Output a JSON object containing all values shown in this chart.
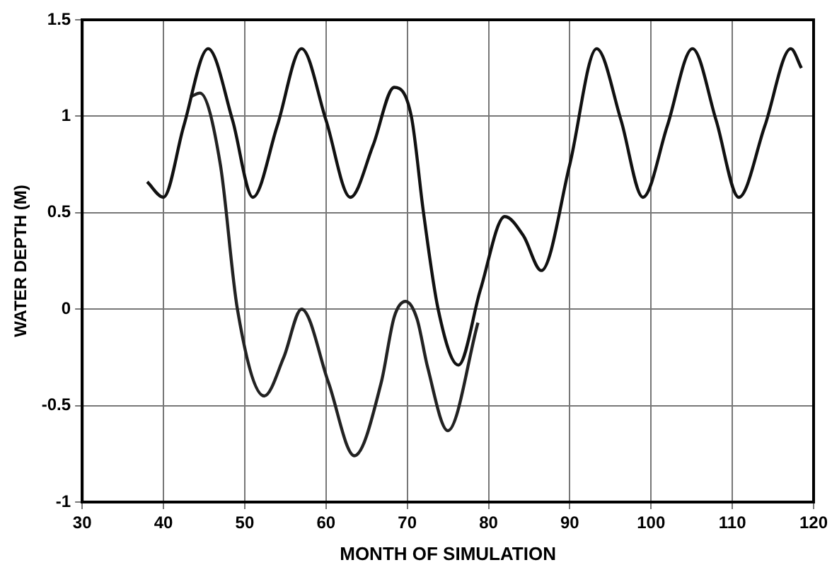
{
  "chart_data": {
    "type": "line",
    "xlabel": "MONTH OF SIMULATION",
    "ylabel": "WATER DEPTH (M)",
    "xlim": [
      30,
      120
    ],
    "xticks": [
      30,
      40,
      50,
      60,
      70,
      80,
      90,
      100,
      110,
      120
    ],
    "ylim": [
      -1,
      1.5
    ],
    "yticks": [
      -1,
      -0.5,
      0,
      0.5,
      1,
      1.5
    ],
    "grid": true,
    "line_style": "solid",
    "marker": "none",
    "series": [
      {
        "color": "#111111",
        "x": [
          38,
          40,
          42.5,
          45.5,
          48.5,
          51,
          54,
          57,
          60,
          63,
          65.8,
          68.4,
          70.5,
          72,
          73.8,
          76.3,
          79,
          82,
          84.3,
          86.5,
          90,
          93.3,
          96.3,
          99,
          102,
          105.1,
          108,
          110.8,
          114,
          117.2,
          118.5
        ],
        "values": [
          0.66,
          0.58,
          0.95,
          1.35,
          0.98,
          0.58,
          0.95,
          1.35,
          0.98,
          0.58,
          0.85,
          1.15,
          1.0,
          0.5,
          0.0,
          -0.29,
          0.1,
          0.48,
          0.38,
          0.2,
          0.75,
          1.35,
          0.98,
          0.58,
          0.95,
          1.35,
          0.98,
          0.58,
          0.95,
          1.35,
          1.25
        ]
      },
      {
        "color": "#222222",
        "x": [
          43.3,
          44.5,
          47,
          49.1,
          52.4,
          54.8,
          57,
          60.3,
          63.5,
          66.8,
          68.4,
          69.8,
          71.2,
          72.5,
          75,
          78.7
        ],
        "values": [
          1.1,
          1.12,
          0.75,
          0.0,
          -0.45,
          -0.25,
          0.0,
          -0.38,
          -0.76,
          -0.38,
          -0.04,
          0.04,
          -0.05,
          -0.3,
          -0.63,
          -0.07
        ]
      }
    ]
  }
}
